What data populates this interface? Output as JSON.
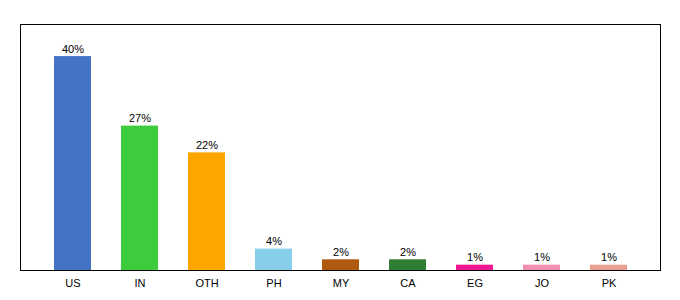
{
  "chart_data": {
    "type": "bar",
    "categories": [
      "US",
      "IN",
      "OTH",
      "PH",
      "MY",
      "CA",
      "EG",
      "JO",
      "PK"
    ],
    "values": [
      40,
      27,
      22,
      4,
      2,
      2,
      1,
      1,
      1
    ],
    "value_labels": [
      "40%",
      "27%",
      "22%",
      "4%",
      "2%",
      "2%",
      "1%",
      "1%",
      "1%"
    ],
    "colors": [
      "#4472c4",
      "#3dcc3d",
      "#ffa500",
      "#87ceeb",
      "#b05a10",
      "#2e7d32",
      "#f01890",
      "#f48fb1",
      "#e8a090"
    ],
    "ylim": [
      0,
      46
    ],
    "grid": false,
    "data_labels": true,
    "tick_labels": "x"
  }
}
